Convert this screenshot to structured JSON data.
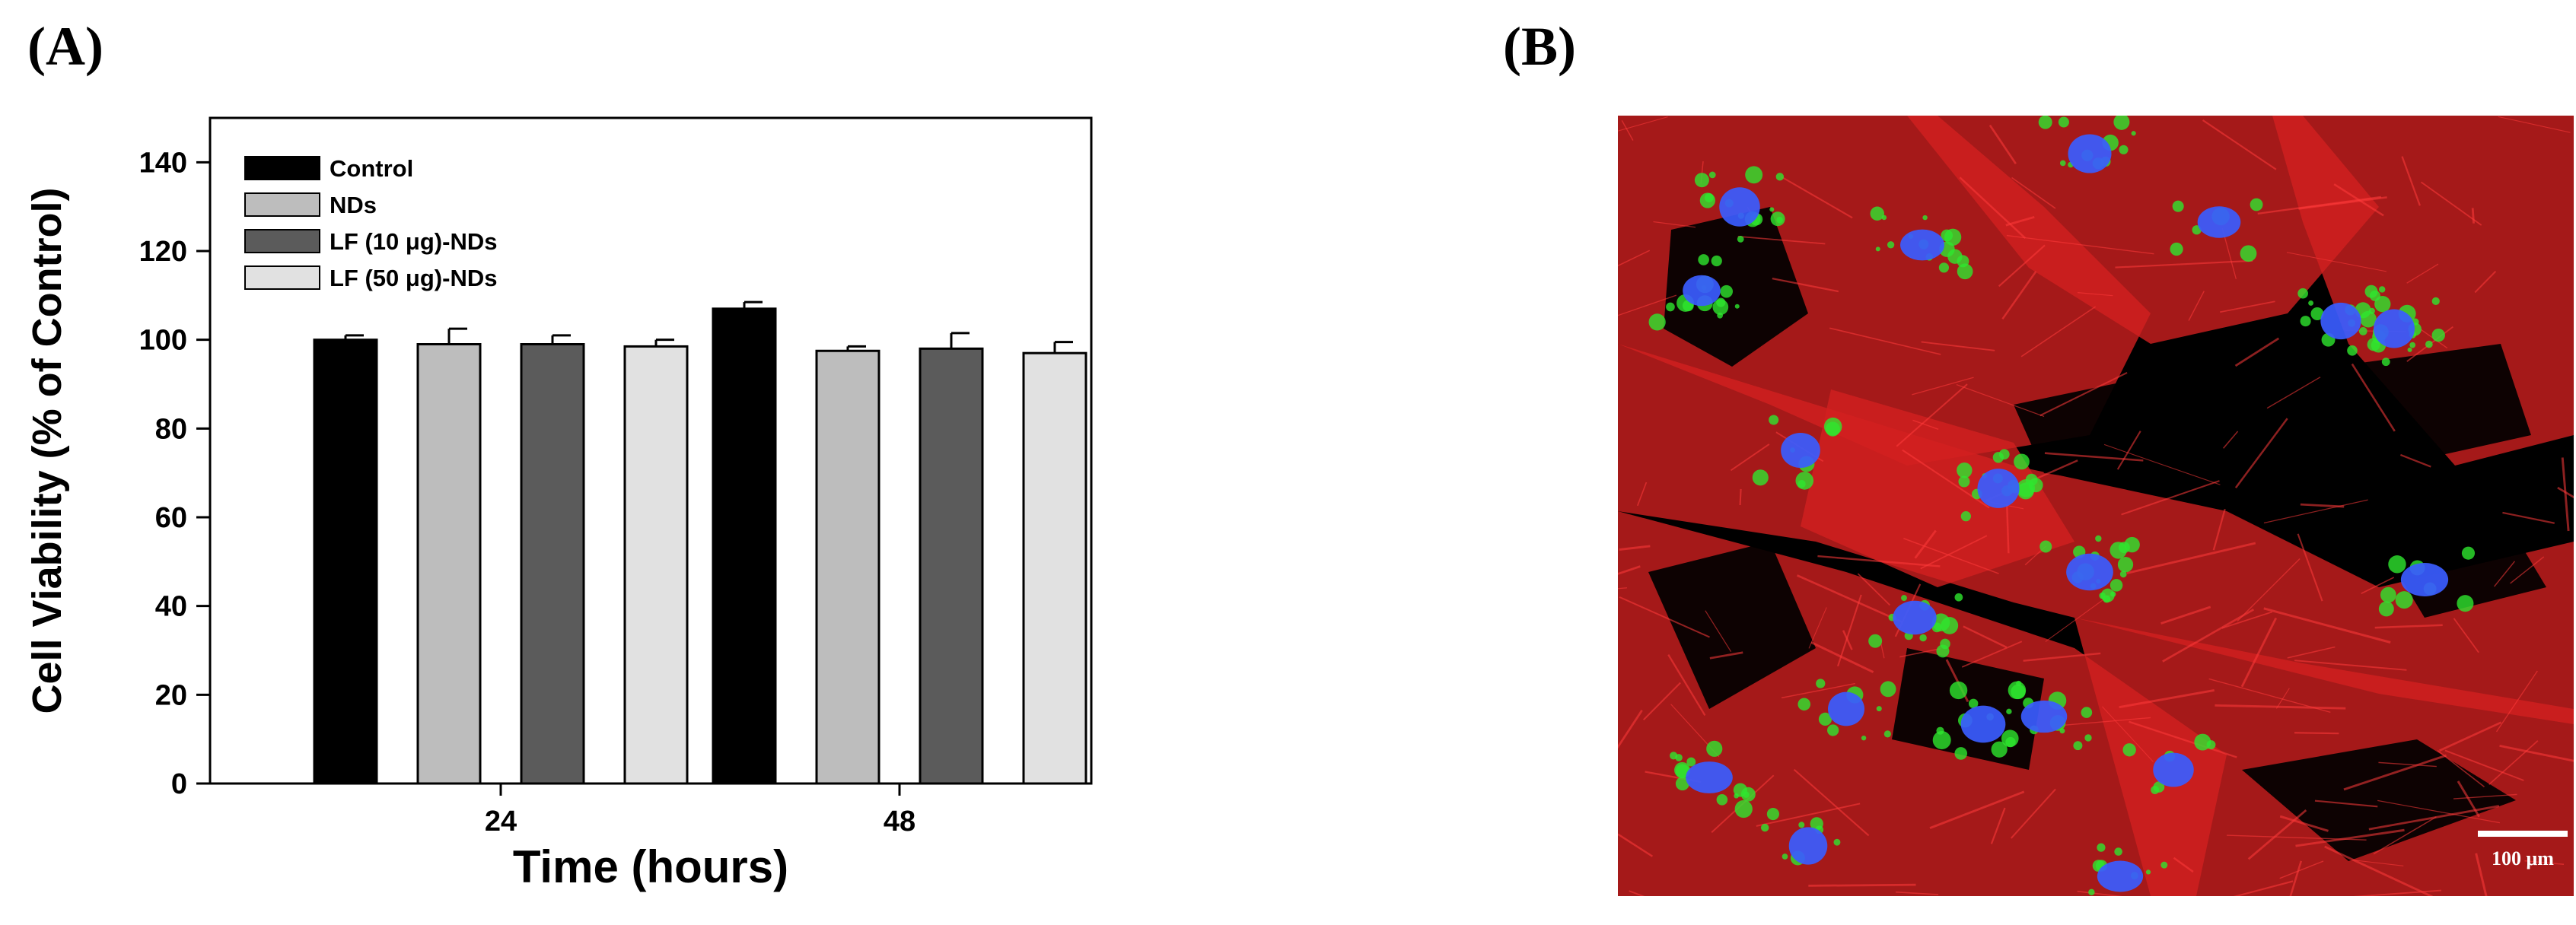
{
  "panels": {
    "a_label": "(A)",
    "b_label": "(B)"
  },
  "chart_data": {
    "type": "bar",
    "xlabel": "Time (hours)",
    "ylabel": "Cell Viability (% of Control)",
    "ylim": [
      0,
      150
    ],
    "yticks": [
      0,
      20,
      40,
      60,
      80,
      100,
      120,
      140
    ],
    "categories": [
      "24",
      "48"
    ],
    "legend_position": "top-left",
    "error_bars": true,
    "series": [
      {
        "name": "Control",
        "color": "#000000",
        "values": [
          100,
          107
        ],
        "errors": [
          1,
          1.5
        ]
      },
      {
        "name": "NDs",
        "color": "#bdbdbd",
        "values": [
          99,
          97.5
        ],
        "errors": [
          3.5,
          1
        ]
      },
      {
        "name": "LF (10 μg)-NDs",
        "color": "#5b5b5b",
        "values": [
          99,
          98
        ],
        "errors": [
          2,
          3.5
        ]
      },
      {
        "name": "LF (50 μg)-NDs",
        "color": "#e1e1e1",
        "values": [
          98.5,
          97
        ],
        "errors": [
          1.5,
          2.5
        ]
      }
    ]
  },
  "micrograph": {
    "scale_bar_label": "100 μm",
    "channel_colors": {
      "cytoskeleton": "#d42020",
      "particles": "#2ee62e",
      "nuclei": "#3a5cff"
    }
  }
}
